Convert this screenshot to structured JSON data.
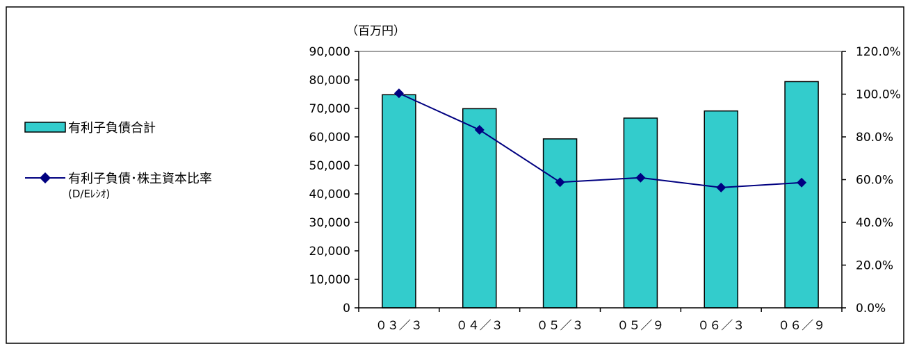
{
  "unit_label": "（百万円）",
  "legend": {
    "bar_label": "有利子負債合計",
    "line_label_1": "有利子負債･株主資本比率",
    "line_label_2": "(D/Eﾚｼｵ)"
  },
  "colors": {
    "bar": "#33cccc",
    "line": "#000080",
    "axis": "#000000",
    "border": "#000000"
  },
  "chart_data": {
    "type": "bar",
    "categories": [
      "０３／３",
      "０４／３",
      "０５／３",
      "０５／９",
      "０６／３",
      "０６／９"
    ],
    "series": [
      {
        "name": "有利子負債合計",
        "type": "bar",
        "axis": "left",
        "values": [
          74800,
          69900,
          59300,
          66600,
          69100,
          79400
        ]
      },
      {
        "name": "有利子負債･株主資本比率(D/Eﾚｼｵ)",
        "type": "line",
        "marker": "diamond",
        "axis": "right",
        "values": [
          100.4,
          83.3,
          58.8,
          60.9,
          56.3,
          58.6
        ]
      }
    ],
    "left_axis": {
      "min": 0,
      "max": 90000,
      "ticks": [
        "0",
        "10,000",
        "20,000",
        "30,000",
        "40,000",
        "50,000",
        "60,000",
        "70,000",
        "80,000",
        "90,000"
      ]
    },
    "right_axis": {
      "min": 0,
      "max": 120,
      "ticks": [
        "0.0%",
        "20.0%",
        "40.0%",
        "60.0%",
        "80.0%",
        "100.0%",
        "120.0%"
      ]
    },
    "gridlines": false,
    "legend_position": "left"
  }
}
